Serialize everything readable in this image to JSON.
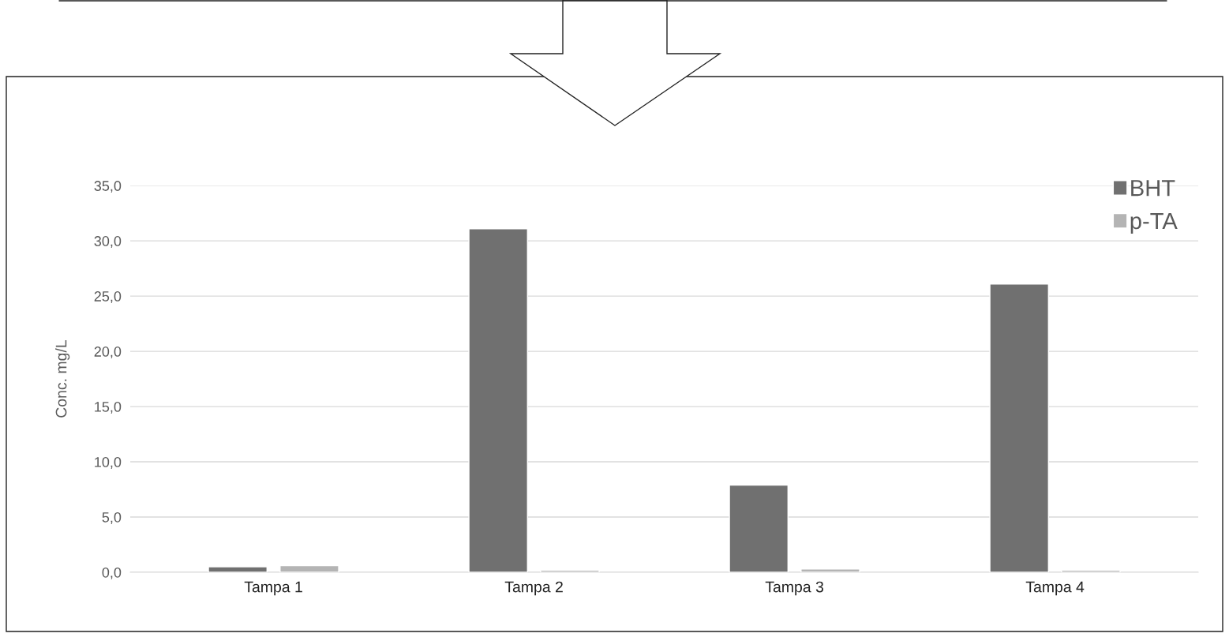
{
  "chart_data": {
    "type": "bar",
    "ylabel": "Conc. mg/L",
    "categories": [
      "Tampa 1",
      "Tampa 2",
      "Tampa 3",
      "Tampa 4"
    ],
    "series": [
      {
        "name": "BHT",
        "color": "#707070",
        "values": [
          0.5,
          31.1,
          7.9,
          26.1
        ]
      },
      {
        "name": "p-TA",
        "color": "#b4b4b4",
        "values": [
          0.6,
          0.2,
          0.3,
          0.2
        ]
      }
    ],
    "ylim": [
      0,
      35
    ],
    "yticks": [
      {
        "value": 0,
        "label": "0,0"
      },
      {
        "value": 5,
        "label": "5,0"
      },
      {
        "value": 10,
        "label": "10,0"
      },
      {
        "value": 15,
        "label": "15,0"
      },
      {
        "value": 20,
        "label": "20,0"
      },
      {
        "value": 25,
        "label": "25,0"
      },
      {
        "value": 30,
        "label": "30,0"
      },
      {
        "value": 35,
        "label": "35,0"
      }
    ],
    "grid": "y",
    "legend": "top right"
  }
}
